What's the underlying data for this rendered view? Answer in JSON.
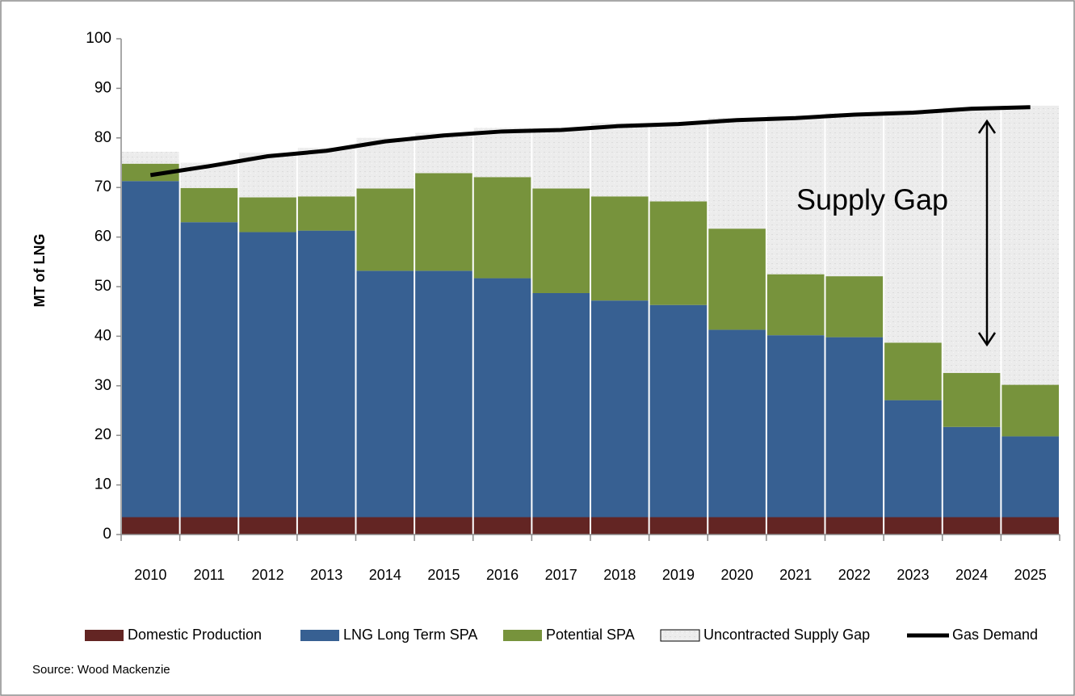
{
  "chart_data": {
    "type": "bar",
    "stacked": true,
    "y_label": "MT of LNG",
    "annotation": "Supply Gap",
    "source": "Source:  Wood Mackenzie",
    "categories": [
      "2010",
      "2011",
      "2012",
      "2013",
      "2014",
      "2015",
      "2016",
      "2017",
      "2018",
      "2019",
      "2020",
      "2021",
      "2022",
      "2023",
      "2024",
      "2025"
    ],
    "series": [
      {
        "name": "Domestic Production",
        "type": "bar",
        "color": "#632523",
        "values": [
          3.5,
          3.5,
          3.5,
          3.5,
          3.5,
          3.5,
          3.5,
          3.5,
          3.5,
          3.5,
          3.5,
          3.5,
          3.5,
          3.5,
          3.5,
          3.5
        ]
      },
      {
        "name": "LNG Long Term SPA",
        "type": "bar",
        "color": "#376092",
        "values": [
          67.8,
          59.5,
          57.5,
          57.8,
          49.7,
          49.7,
          48.2,
          45.2,
          43.7,
          42.8,
          37.8,
          36.7,
          36.3,
          23.6,
          18.2,
          16.3
        ]
      },
      {
        "name": "Potential SPA",
        "type": "bar",
        "color": "#77933c",
        "values": [
          3.5,
          6.9,
          7.0,
          6.9,
          16.6,
          19.7,
          20.4,
          21.1,
          21.0,
          20.9,
          20.4,
          12.3,
          12.3,
          11.6,
          10.9,
          10.4
        ]
      },
      {
        "name": "Uncontracted Supply Gap",
        "type": "bar",
        "color": "#ebebeb",
        "values": [
          2.4,
          5.1,
          9.0,
          9.8,
          10.2,
          8.1,
          9.9,
          12.2,
          14.8,
          15.8,
          22.3,
          32.0,
          32.9,
          46.8,
          53.6,
          56.3
        ]
      },
      {
        "name": "Gas Demand",
        "type": "line",
        "color": "#000000",
        "values": [
          72.5,
          74.3,
          76.3,
          77.4,
          79.3,
          80.5,
          81.3,
          81.6,
          82.4,
          82.8,
          83.6,
          84.0,
          84.7,
          85.1,
          85.9,
          86.2
        ]
      }
    ],
    "ylim": [
      0,
      100
    ],
    "yticks": [
      0,
      10,
      20,
      30,
      40,
      50,
      60,
      70,
      80,
      90,
      100
    ]
  }
}
